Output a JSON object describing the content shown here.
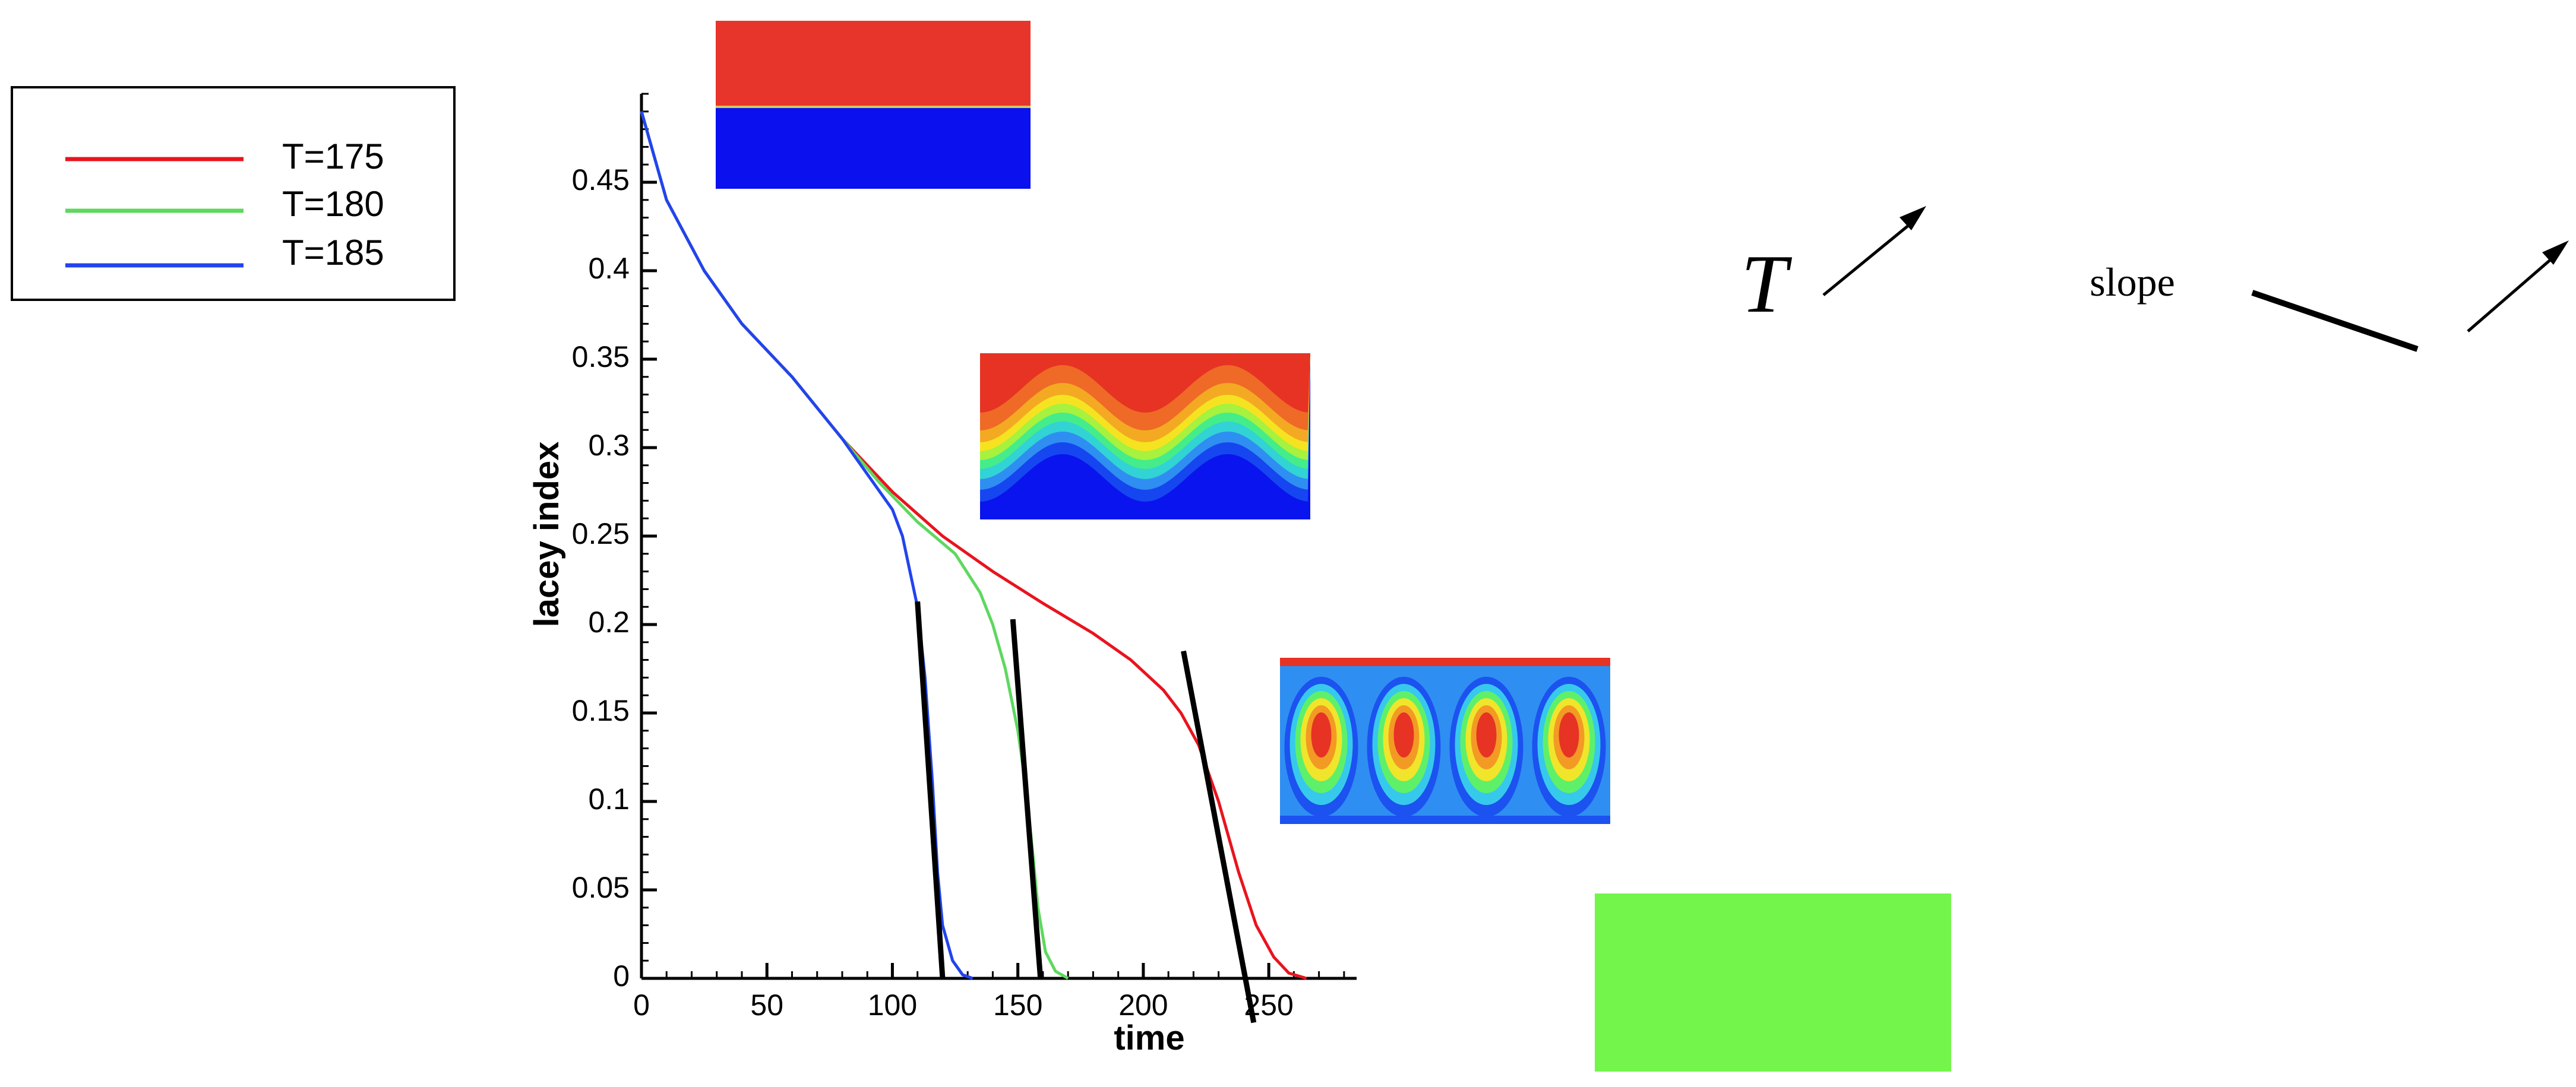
{
  "chart_data": {
    "type": "line",
    "xlabel": "time",
    "ylabel": "lacey index",
    "xlim": [
      0,
      285
    ],
    "ylim": [
      0,
      0.5
    ],
    "x_ticks": [
      0,
      50,
      100,
      150,
      200,
      250
    ],
    "y_ticks": [
      0,
      0.05,
      0.1,
      0.15,
      0.2,
      0.25,
      0.3,
      0.35,
      0.4,
      0.45
    ],
    "x_tick_labels": [
      "0",
      "50",
      "100",
      "150",
      "200",
      "250"
    ],
    "y_tick_labels": [
      "0",
      "0.05",
      "0.1",
      "0.15",
      "0.2",
      "0.25",
      "0.3",
      "0.35",
      "0.4",
      "0.45"
    ],
    "legend_position": "outside-left",
    "series": [
      {
        "name": "T=175",
        "color": "#e8141e",
        "points": [
          [
            0,
            0.49
          ],
          [
            10,
            0.44
          ],
          [
            25,
            0.4
          ],
          [
            40,
            0.37
          ],
          [
            60,
            0.34
          ],
          [
            80,
            0.305
          ],
          [
            100,
            0.275
          ],
          [
            120,
            0.25
          ],
          [
            140,
            0.23
          ],
          [
            160,
            0.212
          ],
          [
            180,
            0.195
          ],
          [
            195,
            0.18
          ],
          [
            208,
            0.163
          ],
          [
            215,
            0.15
          ],
          [
            222,
            0.132
          ],
          [
            230,
            0.1
          ],
          [
            238,
            0.06
          ],
          [
            245,
            0.03
          ],
          [
            252,
            0.012
          ],
          [
            258,
            0.003
          ],
          [
            265,
            0.0
          ]
        ]
      },
      {
        "name": "T=180",
        "color": "#5ed85e",
        "points": [
          [
            0,
            0.49
          ],
          [
            10,
            0.44
          ],
          [
            25,
            0.4
          ],
          [
            40,
            0.37
          ],
          [
            60,
            0.34
          ],
          [
            80,
            0.305
          ],
          [
            95,
            0.28
          ],
          [
            110,
            0.258
          ],
          [
            125,
            0.24
          ],
          [
            135,
            0.218
          ],
          [
            140,
            0.2
          ],
          [
            145,
            0.175
          ],
          [
            150,
            0.14
          ],
          [
            153,
            0.11
          ],
          [
            156,
            0.07
          ],
          [
            158,
            0.04
          ],
          [
            161,
            0.015
          ],
          [
            165,
            0.004
          ],
          [
            170,
            0.0
          ]
        ]
      },
      {
        "name": "T=185",
        "color": "#2244ee",
        "points": [
          [
            0,
            0.49
          ],
          [
            10,
            0.44
          ],
          [
            25,
            0.4
          ],
          [
            40,
            0.37
          ],
          [
            60,
            0.34
          ],
          [
            80,
            0.305
          ],
          [
            90,
            0.285
          ],
          [
            100,
            0.265
          ],
          [
            104,
            0.25
          ],
          [
            107,
            0.23
          ],
          [
            110,
            0.21
          ],
          [
            113,
            0.17
          ],
          [
            116,
            0.11
          ],
          [
            118,
            0.06
          ],
          [
            120,
            0.03
          ],
          [
            124,
            0.01
          ],
          [
            128,
            0.002
          ],
          [
            132,
            0.0
          ]
        ]
      }
    ],
    "slope_lines": [
      {
        "name": "slope-line-185",
        "points": [
          [
            110,
            0.213
          ],
          [
            120,
            0.0
          ]
        ]
      },
      {
        "name": "slope-line-180",
        "points": [
          [
            148,
            0.203
          ],
          [
            159,
            0.0
          ]
        ]
      },
      {
        "name": "slope-line-175",
        "points": [
          [
            216,
            0.185
          ],
          [
            244,
            -0.025
          ]
        ]
      }
    ]
  },
  "annotations": {
    "temperature_symbol": "T",
    "slope_label": "slope"
  },
  "snapshots": [
    {
      "name": "snapshot-initial-layers",
      "description_state": "unmixed"
    },
    {
      "name": "snapshot-wavy-interface",
      "description_state": "wave"
    },
    {
      "name": "snapshot-rolled-vortices",
      "description_state": "rollup"
    },
    {
      "name": "snapshot-fully-mixed",
      "description_state": "mixed"
    }
  ]
}
